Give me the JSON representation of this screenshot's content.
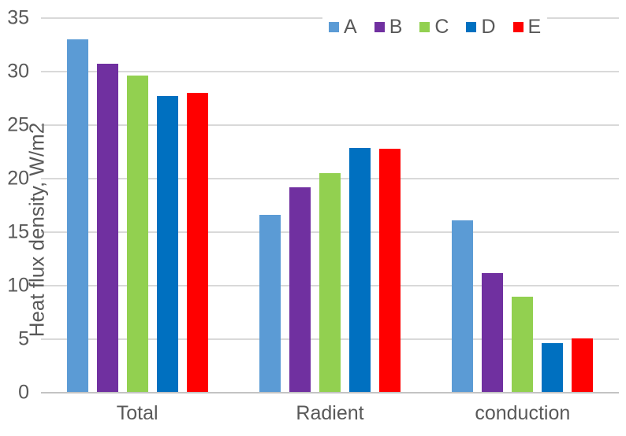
{
  "chart_data": {
    "type": "bar",
    "title": "",
    "categories": [
      "Total",
      "Radient",
      "conduction"
    ],
    "series": [
      {
        "name": "A",
        "color": "#5B9BD5",
        "values": [
          33.0,
          16.6,
          16.1
        ]
      },
      {
        "name": "B",
        "color": "#7030A0",
        "values": [
          30.7,
          19.2,
          11.2
        ]
      },
      {
        "name": "C",
        "color": "#92D050",
        "values": [
          29.6,
          20.5,
          9.0
        ]
      },
      {
        "name": "D",
        "color": "#0070C0",
        "values": [
          27.7,
          22.9,
          4.6
        ]
      },
      {
        "name": "E",
        "color": "#FF0000",
        "values": [
          28.0,
          22.8,
          5.1
        ]
      }
    ],
    "xlabel": "",
    "ylabel": "Heat flux density, W/m2",
    "ylim": [
      0,
      35
    ],
    "yticks": [
      0,
      5,
      10,
      15,
      20,
      25,
      30,
      35
    ],
    "grid": true,
    "legend_position": "top-center"
  },
  "colors": {
    "text": "#595959",
    "gridline": "#D9D9D9",
    "axis_line": "#C3C3C3",
    "background": "#FFFFFF"
  }
}
